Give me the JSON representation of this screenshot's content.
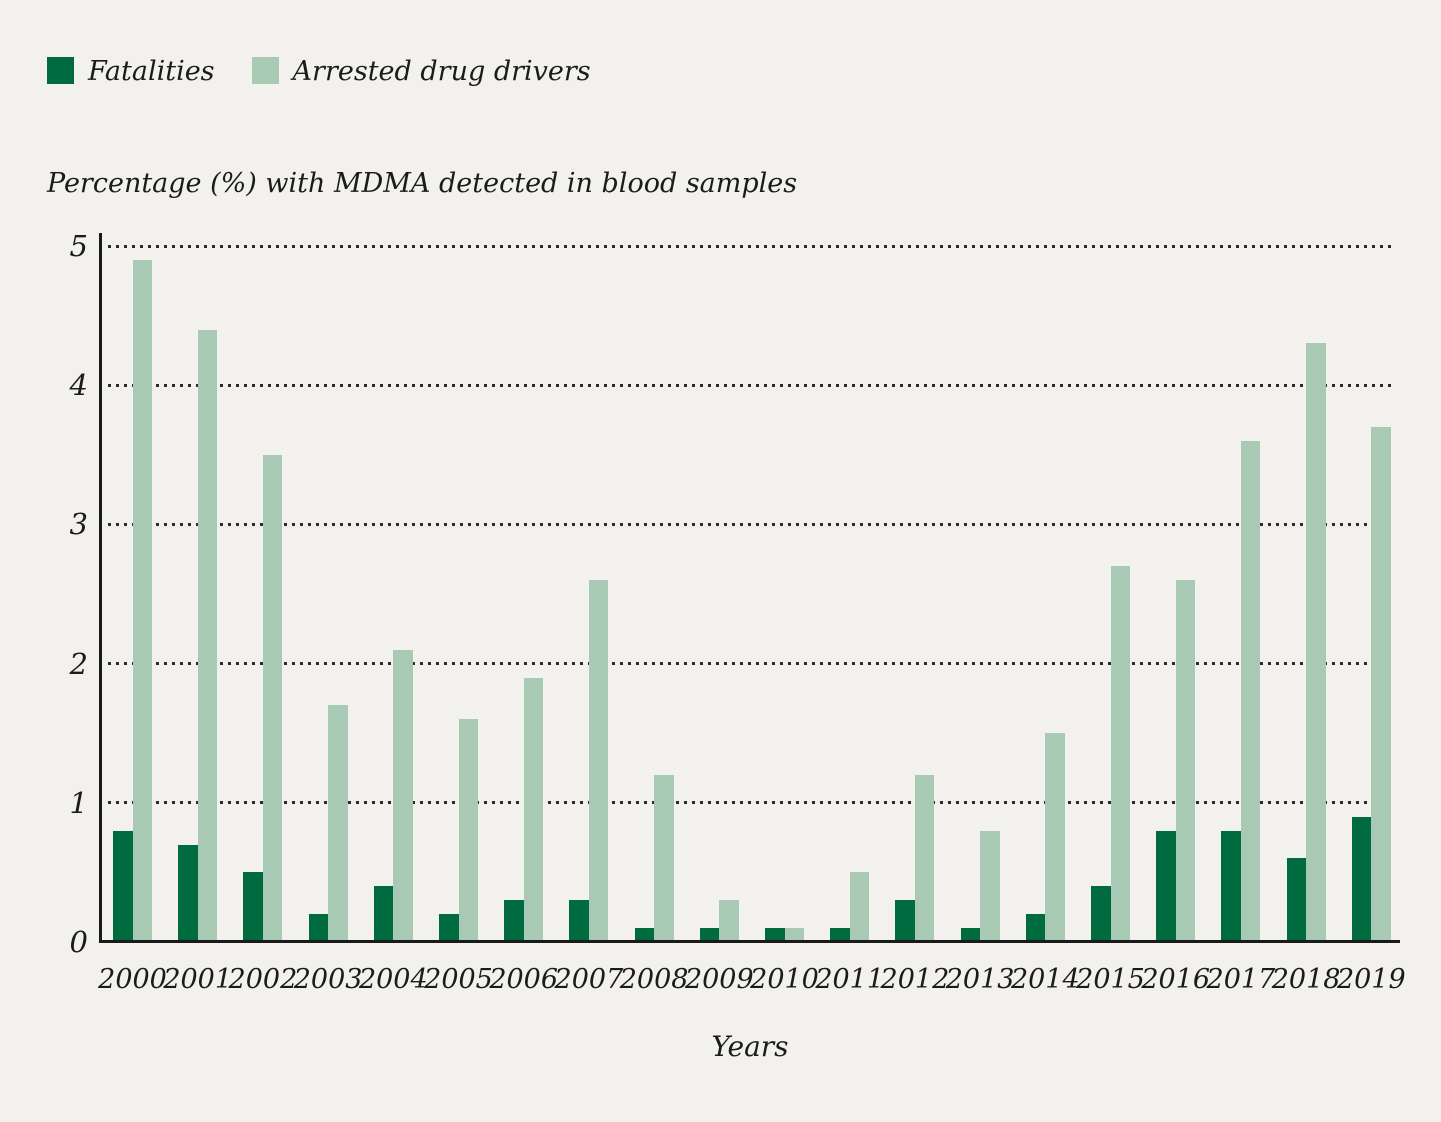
{
  "colors": {
    "background": "#f2f1ee",
    "text": "#1b1b19",
    "axis": "#1a1a1a",
    "gridline": "#2b2b29",
    "fatalities": "#006b3e",
    "arrested": "#a8cab5"
  },
  "legend": {
    "items": [
      {
        "label": "Fatalities",
        "color": "#006b3e"
      },
      {
        "label": "Arrested drug drivers",
        "color": "#a8cab5"
      }
    ]
  },
  "chart_data": {
    "type": "bar",
    "title": "Percentage (%) with MDMA detected in blood samples",
    "xlabel": "Years",
    "ylabel": "Percentage (%) with MDMA detected in blood samples",
    "categories": [
      "2000",
      "2001",
      "2002",
      "2003",
      "2004",
      "2005",
      "2006",
      "2007",
      "2008",
      "2009",
      "2010",
      "2011",
      "2012",
      "2013",
      "2014",
      "2015",
      "2016",
      "2017",
      "2018",
      "2019"
    ],
    "series": [
      {
        "name": "Fatalities",
        "color": "#006b3e",
        "values": [
          0.8,
          0.7,
          0.5,
          0.2,
          0.4,
          0.2,
          0.3,
          0.3,
          0.1,
          0.1,
          0.1,
          0.1,
          0.3,
          0.1,
          0.2,
          0.4,
          0.8,
          0.8,
          0.6,
          0.9
        ]
      },
      {
        "name": "Arrested drug drivers",
        "color": "#a8cab5",
        "values": [
          4.9,
          4.4,
          3.5,
          1.7,
          2.1,
          1.6,
          1.9,
          2.6,
          1.2,
          0.3,
          0.1,
          0.5,
          1.2,
          0.8,
          1.5,
          2.7,
          2.6,
          3.6,
          4.3,
          3.7
        ]
      }
    ],
    "ylim": [
      0,
      5
    ],
    "yticks": [
      "0",
      "1",
      "2",
      "3",
      "4",
      "5"
    ],
    "grid": "horizontal dotted",
    "legend_position": "top-left"
  }
}
